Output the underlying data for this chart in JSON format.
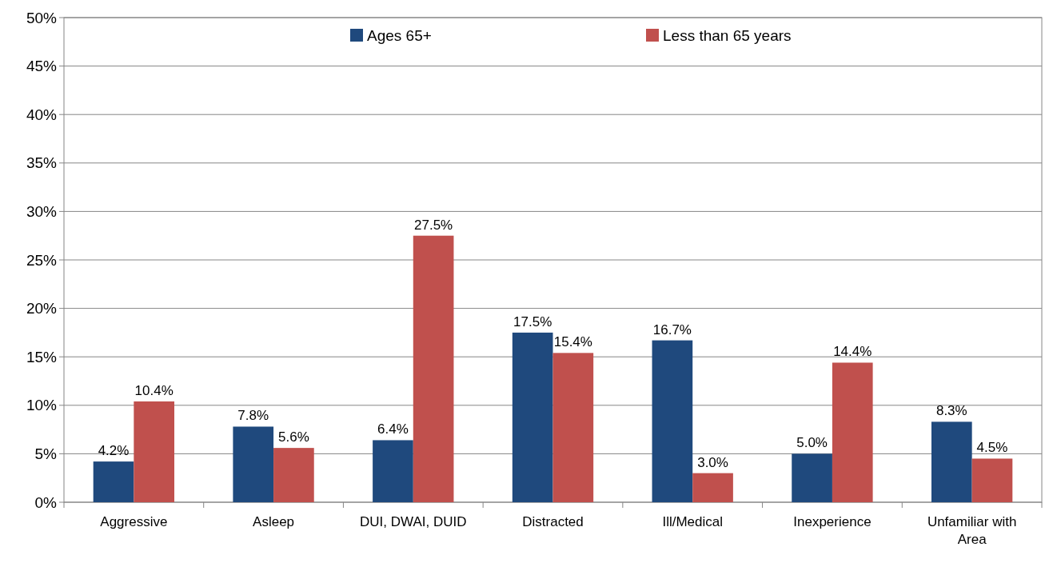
{
  "chart_data": {
    "type": "bar",
    "categories": [
      "Aggressive",
      "Asleep",
      "DUI, DWAI, DUID",
      "Distracted",
      "Ill/Medical",
      "Inexperience",
      "Unfamiliar with Area"
    ],
    "series": [
      {
        "name": "Ages 65+",
        "color": "#1f497d",
        "values": [
          4.2,
          7.8,
          6.4,
          17.5,
          16.7,
          5.0,
          8.3
        ],
        "value_labels": [
          "4.2%",
          "7.8%",
          "6.4%",
          "17.5%",
          "16.7%",
          "5.0%",
          "8.3%"
        ]
      },
      {
        "name": "Less than 65 years",
        "color": "#c0504d",
        "values": [
          10.4,
          5.6,
          27.5,
          15.4,
          3.0,
          14.4,
          4.5
        ],
        "value_labels": [
          "10.4%",
          "5.6%",
          "27.5%",
          "15.4%",
          "3.0%",
          "14.4%",
          "4.5%"
        ]
      }
    ],
    "ylim": [
      0,
      50
    ],
    "yticks": [
      {
        "value": 0,
        "label": "0%"
      },
      {
        "value": 5,
        "label": "5%"
      },
      {
        "value": 10,
        "label": "10%"
      },
      {
        "value": 15,
        "label": "15%"
      },
      {
        "value": 20,
        "label": "20%"
      },
      {
        "value": 25,
        "label": "25%"
      },
      {
        "value": 30,
        "label": "30%"
      },
      {
        "value": 35,
        "label": "35%"
      },
      {
        "value": 40,
        "label": "40%"
      },
      {
        "value": 45,
        "label": "45%"
      },
      {
        "value": 50,
        "label": "50%"
      }
    ],
    "grid": "y",
    "legend": "top"
  }
}
